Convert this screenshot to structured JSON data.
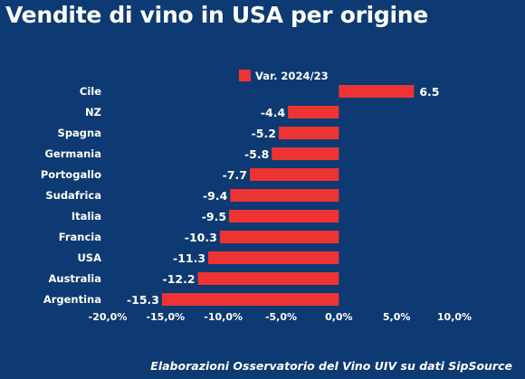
{
  "title": "Vendite di vino in USA per origine",
  "footer": "Elaborazioni Osservatorio del Vino UIV su dati SipSource",
  "colors": {
    "background": "#0d3a73",
    "bar": "#ee3333",
    "text": "#ffffff"
  },
  "chart_data": {
    "type": "bar",
    "orientation": "horizontal",
    "categories": [
      "Cile",
      "NZ",
      "Spagna",
      "Germania",
      "Portogallo",
      "Sudafrica",
      "Italia",
      "Francia",
      "USA",
      "Australia",
      "Argentina"
    ],
    "series": [
      {
        "name": "Var. 2024/23",
        "values": [
          6.5,
          -4.4,
          -5.2,
          -5.8,
          -7.7,
          -9.4,
          -9.5,
          -10.3,
          -11.3,
          -12.2,
          -15.3
        ]
      }
    ],
    "data_labels": [
      "6.5",
      "-4.4",
      "-5.2",
      "-5.8",
      "-7.7",
      "-9.4",
      "-9.5",
      "-10.3",
      "-11.3",
      "-12.2",
      "-15.3"
    ],
    "x_ticks": [
      "-20,0%",
      "-15,0%",
      "-10,0%",
      "-5,0%",
      "0,0%",
      "5,0%",
      "10,0%"
    ],
    "xlim": [
      -20,
      10
    ],
    "legend_position": "top",
    "grid": false
  }
}
